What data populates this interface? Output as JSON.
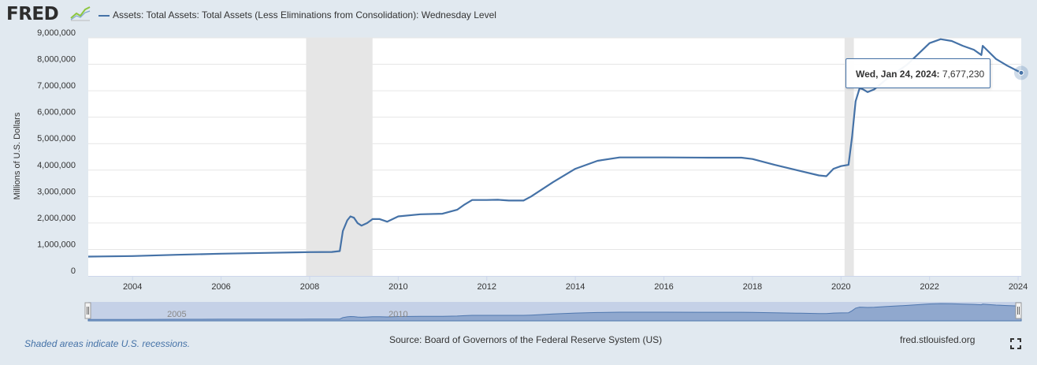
{
  "header": {
    "logo_text": "FRED",
    "legend_label": "Assets: Total Assets: Total Assets (Less Eliminations from Consolidation): Wednesday Level",
    "series_color": "#4572a7"
  },
  "chart_data": {
    "type": "line",
    "title": "",
    "xlabel": "",
    "ylabel": "Millions of U.S. Dollars",
    "x_unit": "year",
    "xlim": [
      2003.0,
      2024.0
    ],
    "ylim": [
      0,
      9000000
    ],
    "yticks": [
      {
        "value": 0,
        "label": "0"
      },
      {
        "value": 1000000,
        "label": "1,000,000"
      },
      {
        "value": 2000000,
        "label": "2,000,000"
      },
      {
        "value": 3000000,
        "label": "3,000,000"
      },
      {
        "value": 4000000,
        "label": "4,000,000"
      },
      {
        "value": 5000000,
        "label": "5,000,000"
      },
      {
        "value": 6000000,
        "label": "6,000,000"
      },
      {
        "value": 7000000,
        "label": "7,000,000"
      },
      {
        "value": 8000000,
        "label": "8,000,000"
      },
      {
        "value": 9000000,
        "label": "9,000,000"
      }
    ],
    "xticks": [
      {
        "value": 2004,
        "label": "2004"
      },
      {
        "value": 2006,
        "label": "2006"
      },
      {
        "value": 2008,
        "label": "2008"
      },
      {
        "value": 2010,
        "label": "2010"
      },
      {
        "value": 2012,
        "label": "2012"
      },
      {
        "value": 2014,
        "label": "2014"
      },
      {
        "value": 2016,
        "label": "2016"
      },
      {
        "value": 2018,
        "label": "2018"
      },
      {
        "value": 2020,
        "label": "2020"
      },
      {
        "value": 2022,
        "label": "2022"
      },
      {
        "value": 2024,
        "label": "2024"
      }
    ],
    "grid": true,
    "recessions": [
      [
        2007.92,
        2009.42
      ],
      [
        2020.08,
        2020.29
      ]
    ],
    "series": [
      {
        "color": "#4572a7",
        "points": [
          [
            2003.0,
            730000
          ],
          [
            2004.0,
            750000
          ],
          [
            2005.0,
            800000
          ],
          [
            2006.0,
            840000
          ],
          [
            2007.0,
            870000
          ],
          [
            2008.0,
            900000
          ],
          [
            2008.5,
            905000
          ],
          [
            2008.68,
            940000
          ],
          [
            2008.75,
            1700000
          ],
          [
            2008.85,
            2100000
          ],
          [
            2008.92,
            2250000
          ],
          [
            2009.0,
            2200000
          ],
          [
            2009.08,
            2000000
          ],
          [
            2009.17,
            1900000
          ],
          [
            2009.3,
            2000000
          ],
          [
            2009.42,
            2150000
          ],
          [
            2009.58,
            2150000
          ],
          [
            2009.75,
            2050000
          ],
          [
            2010.0,
            2250000
          ],
          [
            2010.5,
            2330000
          ],
          [
            2011.0,
            2350000
          ],
          [
            2011.33,
            2500000
          ],
          [
            2011.5,
            2700000
          ],
          [
            2011.67,
            2870000
          ],
          [
            2012.0,
            2870000
          ],
          [
            2012.25,
            2880000
          ],
          [
            2012.5,
            2850000
          ],
          [
            2012.83,
            2850000
          ],
          [
            2013.0,
            3000000
          ],
          [
            2013.5,
            3550000
          ],
          [
            2014.0,
            4050000
          ],
          [
            2014.5,
            4350000
          ],
          [
            2015.0,
            4480000
          ],
          [
            2016.0,
            4480000
          ],
          [
            2017.0,
            4470000
          ],
          [
            2017.75,
            4470000
          ],
          [
            2018.0,
            4420000
          ],
          [
            2018.5,
            4200000
          ],
          [
            2019.0,
            4000000
          ],
          [
            2019.5,
            3800000
          ],
          [
            2019.67,
            3770000
          ],
          [
            2019.83,
            4050000
          ],
          [
            2020.0,
            4150000
          ],
          [
            2020.17,
            4200000
          ],
          [
            2020.25,
            5250000
          ],
          [
            2020.33,
            6600000
          ],
          [
            2020.42,
            7100000
          ],
          [
            2020.5,
            7050000
          ],
          [
            2020.6,
            6950000
          ],
          [
            2020.75,
            7050000
          ],
          [
            2021.0,
            7400000
          ],
          [
            2021.5,
            8000000
          ],
          [
            2022.0,
            8800000
          ],
          [
            2022.25,
            8950000
          ],
          [
            2022.5,
            8880000
          ],
          [
            2022.75,
            8700000
          ],
          [
            2023.0,
            8550000
          ],
          [
            2023.17,
            8350000
          ],
          [
            2023.2,
            8700000
          ],
          [
            2023.5,
            8200000
          ],
          [
            2023.75,
            7950000
          ],
          [
            2024.07,
            7677230
          ]
        ]
      }
    ],
    "tooltip": {
      "date": "Wed, Jan 24, 2024:",
      "value": "7,677,230"
    },
    "navigator_labels": [
      {
        "value": 2005,
        "label": "2005"
      },
      {
        "value": 2010,
        "label": "2010"
      }
    ]
  },
  "footer": {
    "note": "Shaded areas indicate U.S. recessions.",
    "source": "Source: Board of Governors of the Federal Reserve System (US)",
    "site": "fred.stlouisfed.org"
  }
}
